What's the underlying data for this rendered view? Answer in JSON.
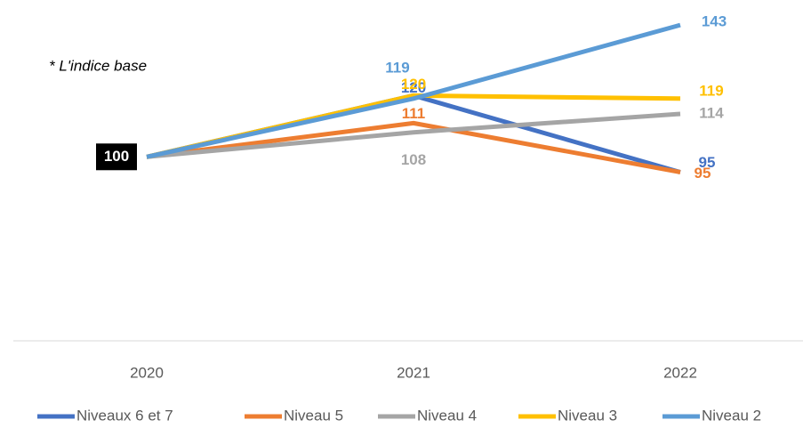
{
  "chart_data": {
    "type": "line",
    "annotation": "* L'indice base",
    "categories": [
      "2020",
      "2021",
      "2022"
    ],
    "series": [
      {
        "name": "Niveaux 6 et 7",
        "color": "#4472c4",
        "values": [
          100,
          120,
          95
        ]
      },
      {
        "name": "Niveau 5",
        "color": "#ed7d31",
        "values": [
          100,
          111,
          95
        ]
      },
      {
        "name": "Niveau 4",
        "color": "#a5a5a5",
        "values": [
          100,
          108,
          114
        ]
      },
      {
        "name": "Niveau 3",
        "color": "#ffc000",
        "values": [
          100,
          120,
          119
        ]
      },
      {
        "name": "Niveau 2",
        "color": "#5b9bd5",
        "values": [
          100,
          119,
          143
        ]
      }
    ],
    "ylim": [
      40,
      150
    ],
    "grid": false,
    "legend": "bottom"
  }
}
